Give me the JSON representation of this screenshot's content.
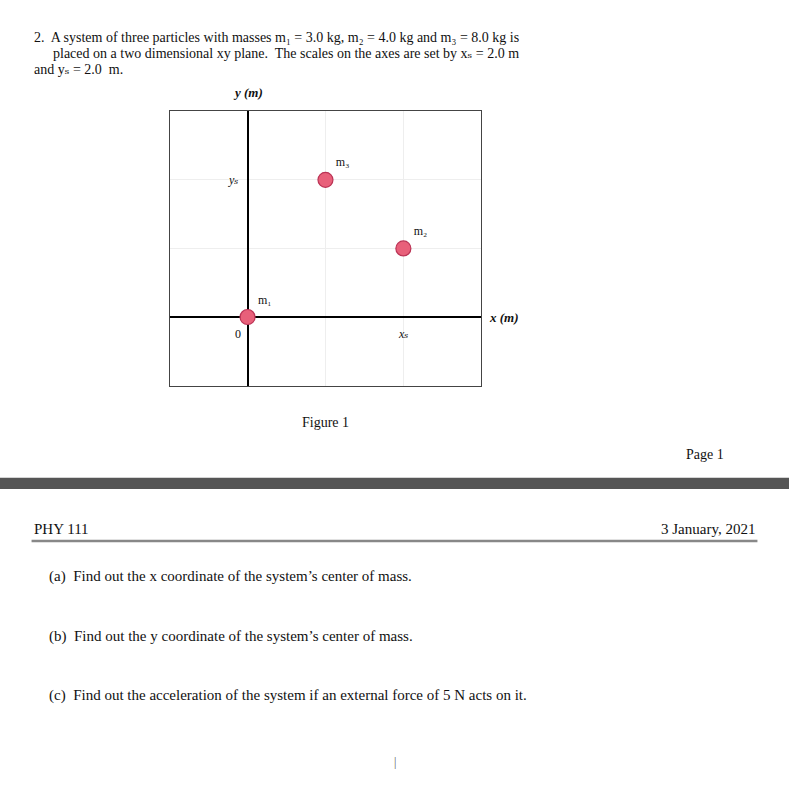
{
  "chart_data": {
    "type": "scatter",
    "header": [
      "2.  A system of three particles with masses m₁ = 3.0 kg, m₂ = 4.0 kg and m₃ = 8.0 kg is",
      "placed on a two dimensional xy plane.  The scales on the axes are set by xₛ = 2.0 m",
      "and yₛ = 2.0  m."
    ],
    "x_label": "x (m)",
    "y_label": "y (m)",
    "xlim": [
      -1,
      3
    ],
    "ylim": [
      -1,
      3
    ],
    "xticks": [
      -1,
      0,
      1,
      2,
      3
    ],
    "yticks": [
      -1,
      0,
      1,
      2,
      3
    ],
    "grid": true,
    "tick_labels": false,
    "series": [
      {
        "color": "#e8607a",
        "x": [
          0,
          2,
          1
        ],
        "values": [
          0,
          1,
          2
        ],
        "labels": [
          "m₁",
          "m₂",
          "m₃"
        ]
      }
    ],
    "annotations": [
      {
        "text": "xₛ",
        "x": 2,
        "y": 0
      },
      {
        "text": "yₛ",
        "x": 0,
        "y": 2
      },
      {
        "text": "0",
        "x": 0,
        "y": 0
      }
    ],
    "caption": "Figure 1",
    "page_label": "Page 1",
    "footer_left": "PHY 111",
    "footer_right": "3 January, 2021",
    "questions": [
      "(a)  Find out the x coordinate of the system’s center of mass.",
      "(b)  Find out the y coordinate of the system’s center of mass.",
      "(c)  Find out the acceleration of the system if an external force of 5 N acts on it."
    ],
    "cursor_mark": "|"
  }
}
